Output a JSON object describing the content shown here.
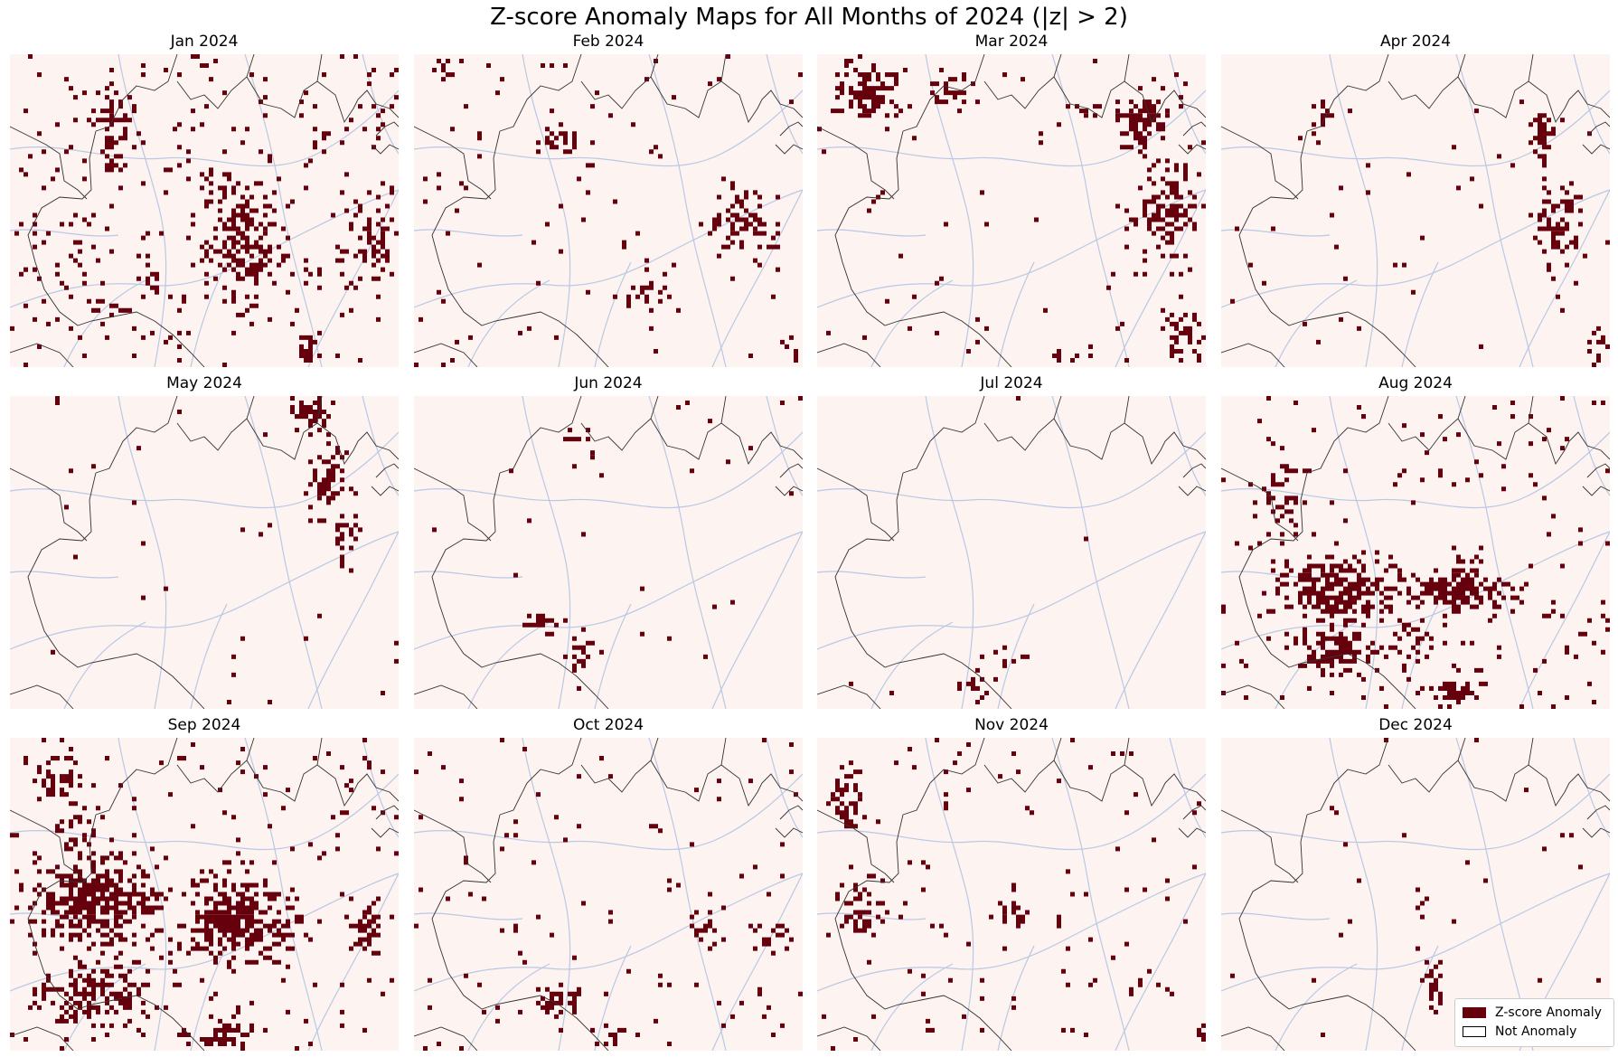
{
  "title": "Z-score Anomaly Maps for All Months of 2024 (|z| > 2)",
  "colors": {
    "anomaly": "#67000d",
    "background": "#fdf3f0",
    "borders": "#333333",
    "rivers": "#b9c8e4"
  },
  "legend": {
    "anomaly_label": "Z-score Anomaly",
    "normal_label": "Not Anomaly"
  },
  "panels": [
    {
      "title": "Jan 2024",
      "clusters": [
        [
          0.27,
          0.17,
          0.05,
          0.08,
          0.8
        ],
        [
          0.27,
          0.32,
          0.03,
          0.08,
          0.6
        ],
        [
          0.6,
          0.6,
          0.09,
          0.18,
          0.7
        ],
        [
          0.53,
          0.42,
          0.05,
          0.08,
          0.4
        ],
        [
          0.93,
          0.6,
          0.06,
          0.14,
          0.5
        ],
        [
          0.37,
          0.72,
          0.04,
          0.06,
          0.4
        ],
        [
          0.25,
          0.82,
          0.06,
          0.05,
          0.4
        ],
        [
          0.81,
          0.27,
          0.01,
          0.06,
          0.5
        ],
        [
          0.77,
          0.94,
          0.03,
          0.06,
          0.5
        ],
        [
          0.18,
          0.6,
          0.06,
          0.1,
          0.25
        ]
      ],
      "sparse": 0.035
    },
    {
      "title": "Feb 2024",
      "clusters": [
        [
          0.37,
          0.27,
          0.05,
          0.04,
          0.6
        ],
        [
          0.85,
          0.55,
          0.08,
          0.12,
          0.45
        ],
        [
          0.6,
          0.75,
          0.05,
          0.08,
          0.4
        ],
        [
          0.08,
          0.05,
          0.02,
          0.03,
          0.5
        ],
        [
          0.97,
          0.95,
          0.02,
          0.04,
          0.5
        ]
      ],
      "sparse": 0.015
    },
    {
      "title": "Mar 2024",
      "clusters": [
        [
          0.14,
          0.12,
          0.07,
          0.09,
          0.8
        ],
        [
          0.34,
          0.12,
          0.04,
          0.05,
          0.7
        ],
        [
          0.84,
          0.22,
          0.06,
          0.1,
          0.8
        ],
        [
          0.9,
          0.5,
          0.07,
          0.15,
          0.7
        ],
        [
          0.93,
          0.9,
          0.05,
          0.07,
          0.6
        ],
        [
          0.65,
          0.95,
          0.05,
          0.03,
          0.5
        ],
        [
          0.7,
          0.18,
          0.05,
          0.02,
          0.5
        ]
      ],
      "sparse": 0.01
    },
    {
      "title": "Apr 2024",
      "clusters": [
        [
          0.83,
          0.25,
          0.03,
          0.08,
          0.85
        ],
        [
          0.87,
          0.55,
          0.05,
          0.14,
          0.6
        ],
        [
          0.97,
          0.93,
          0.03,
          0.06,
          0.5
        ],
        [
          0.26,
          0.2,
          0.02,
          0.05,
          0.6
        ]
      ],
      "sparse": 0.008
    },
    {
      "title": "May 2024",
      "clusters": [
        [
          0.78,
          0.05,
          0.05,
          0.06,
          0.8
        ],
        [
          0.82,
          0.28,
          0.05,
          0.1,
          0.7
        ],
        [
          0.86,
          0.45,
          0.03,
          0.08,
          0.6
        ]
      ],
      "sparse": 0.006
    },
    {
      "title": "Jun 2024",
      "clusters": [
        [
          0.33,
          0.72,
          0.05,
          0.03,
          0.6
        ],
        [
          0.43,
          0.82,
          0.04,
          0.05,
          0.4
        ],
        [
          0.44,
          0.15,
          0.03,
          0.05,
          0.3
        ]
      ],
      "sparse": 0.004
    },
    {
      "title": "Jul 2024",
      "clusters": [
        [
          0.42,
          0.9,
          0.04,
          0.06,
          0.4
        ],
        [
          0.5,
          0.82,
          0.04,
          0.04,
          0.3
        ]
      ],
      "sparse": 0.002
    },
    {
      "title": "Aug 2024",
      "clusters": [
        [
          0.3,
          0.62,
          0.14,
          0.1,
          0.9
        ],
        [
          0.6,
          0.62,
          0.12,
          0.07,
          0.85
        ],
        [
          0.3,
          0.82,
          0.1,
          0.08,
          0.75
        ],
        [
          0.5,
          0.77,
          0.08,
          0.06,
          0.55
        ],
        [
          0.6,
          0.94,
          0.06,
          0.04,
          0.8
        ],
        [
          0.15,
          0.3,
          0.06,
          0.15,
          0.35
        ]
      ],
      "sparse": 0.03
    },
    {
      "title": "Sep 2024",
      "clusters": [
        [
          0.22,
          0.52,
          0.16,
          0.14,
          0.9
        ],
        [
          0.58,
          0.58,
          0.14,
          0.13,
          0.85
        ],
        [
          0.22,
          0.82,
          0.12,
          0.09,
          0.8
        ],
        [
          0.12,
          0.12,
          0.07,
          0.09,
          0.5
        ],
        [
          0.18,
          0.32,
          0.06,
          0.1,
          0.55
        ],
        [
          0.92,
          0.6,
          0.04,
          0.07,
          0.7
        ],
        [
          0.55,
          0.95,
          0.07,
          0.05,
          0.8
        ]
      ],
      "sparse": 0.03
    },
    {
      "title": "Oct 2024",
      "clusters": [
        [
          0.38,
          0.83,
          0.06,
          0.05,
          0.6
        ],
        [
          0.52,
          0.95,
          0.05,
          0.04,
          0.6
        ],
        [
          0.75,
          0.6,
          0.05,
          0.06,
          0.45
        ],
        [
          0.92,
          0.62,
          0.04,
          0.05,
          0.45
        ]
      ],
      "sparse": 0.016
    },
    {
      "title": "Nov 2024",
      "clusters": [
        [
          0.07,
          0.2,
          0.04,
          0.1,
          0.5
        ],
        [
          0.12,
          0.55,
          0.06,
          0.1,
          0.45
        ],
        [
          0.5,
          0.56,
          0.05,
          0.04,
          0.6
        ],
        [
          0.33,
          0.2,
          0.02,
          0.04,
          0.4
        ],
        [
          0.99,
          0.95,
          0.01,
          0.03,
          0.6
        ]
      ],
      "sparse": 0.015
    },
    {
      "title": "Dec 2024",
      "clusters": [
        [
          0.52,
          0.52,
          0.02,
          0.04,
          0.5
        ],
        [
          0.55,
          0.78,
          0.03,
          0.07,
          0.45
        ],
        [
          0.89,
          0.32,
          0.02,
          0.02,
          0.5
        ]
      ],
      "sparse": 0.004
    }
  ]
}
